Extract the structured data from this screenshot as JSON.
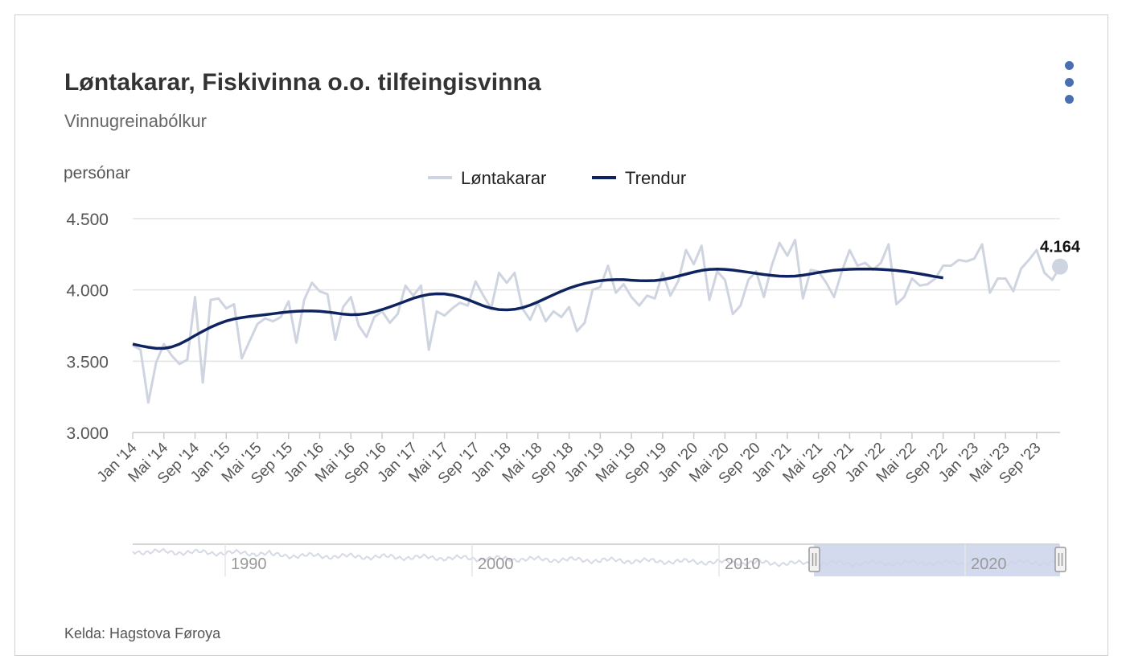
{
  "title": "Løntakarar, Fiskivinna o.o. tilfeingisvinna",
  "subtitle": "Vinnugreinabólkur",
  "source": "Kelda: Hagstova Føroya",
  "colors": {
    "raw": "#cfd4e1",
    "trend": "#0f2360",
    "menu": "#4a6fb0",
    "navigator_fill": "#cdd3ea"
  },
  "chart_data": {
    "type": "line",
    "ylabel": "persónar",
    "ylim": [
      3000,
      4500
    ],
    "y_ticks": [
      "4.500",
      "4.000",
      "3.500",
      "3.000"
    ],
    "y_tick_values": [
      4500,
      4000,
      3500,
      3000
    ],
    "x_start": "2014-01",
    "x_tick_labels": [
      "Jan '14",
      "Mai '14",
      "Sep '14",
      "Jan '15",
      "Mai '15",
      "Sep '15",
      "Jan '16",
      "Mai '16",
      "Sep '16",
      "Jan '17",
      "Mai '17",
      "Sep '17",
      "Jan '18",
      "Mai '18",
      "Sep '18",
      "Jan '19",
      "Mai '19",
      "Sep '19",
      "Jan '20",
      "Mai '20",
      "Sep '20",
      "Jan '21",
      "Mai '21",
      "Sep '21",
      "Jan '22",
      "Mai '22",
      "Sep '22",
      "Jan '23",
      "Mai '23",
      "Sep '23"
    ],
    "last_value_label": "4.164",
    "navigator_labels": [
      "1990",
      "2000",
      "2010",
      "2020"
    ],
    "series": [
      {
        "name": "Løntakarar",
        "values": [
          3610,
          3580,
          3210,
          3490,
          3620,
          3540,
          3480,
          3510,
          3950,
          3350,
          3930,
          3940,
          3870,
          3900,
          3520,
          3640,
          3760,
          3800,
          3780,
          3810,
          3920,
          3630,
          3930,
          4050,
          3990,
          3970,
          3650,
          3880,
          3950,
          3750,
          3670,
          3810,
          3850,
          3770,
          3830,
          4030,
          3960,
          4030,
          3580,
          3850,
          3820,
          3870,
          3910,
          3890,
          4060,
          3960,
          3870,
          4120,
          4050,
          4120,
          3870,
          3790,
          3910,
          3780,
          3850,
          3810,
          3880,
          3710,
          3770,
          4000,
          4020,
          4170,
          3980,
          4040,
          3950,
          3890,
          3960,
          3940,
          4120,
          3960,
          4060,
          4280,
          4180,
          4310,
          3930,
          4130,
          4070,
          3830,
          3890,
          4070,
          4130,
          3950,
          4170,
          4330,
          4240,
          4350,
          3940,
          4140,
          4130,
          4050,
          3950,
          4130,
          4280,
          4170,
          4190,
          4140,
          4190,
          4320,
          3900,
          3950,
          4080,
          4030,
          4040,
          4080,
          4170,
          4170,
          4210,
          4200,
          4220,
          4320,
          3980,
          4080,
          4080,
          3990,
          4150,
          4210,
          4280,
          4120,
          4070,
          4164
        ]
      },
      {
        "name": "Trendur",
        "values": [
          3620,
          3608,
          3598,
          3590,
          3590,
          3600,
          3620,
          3648,
          3680,
          3710,
          3738,
          3762,
          3782,
          3796,
          3806,
          3814,
          3820,
          3826,
          3833,
          3840,
          3846,
          3850,
          3852,
          3852,
          3850,
          3845,
          3838,
          3830,
          3826,
          3827,
          3834,
          3846,
          3862,
          3880,
          3900,
          3921,
          3941,
          3957,
          3968,
          3973,
          3972,
          3964,
          3950,
          3932,
          3910,
          3888,
          3872,
          3862,
          3860,
          3864,
          3875,
          3893,
          3916,
          3941,
          3966,
          3990,
          4012,
          4030,
          4045,
          4056,
          4065,
          4070,
          4072,
          4072,
          4068,
          4065,
          4064,
          4066,
          4072,
          4083,
          4097,
          4111,
          4125,
          4137,
          4144,
          4146,
          4144,
          4139,
          4132,
          4124,
          4116,
          4108,
          4102,
          4097,
          4095,
          4097,
          4103,
          4112,
          4122,
          4130,
          4138,
          4142,
          4145,
          4146,
          4146,
          4146,
          4144,
          4141,
          4136,
          4130,
          4122,
          4113,
          4103,
          4093,
          4085
        ]
      }
    ]
  }
}
